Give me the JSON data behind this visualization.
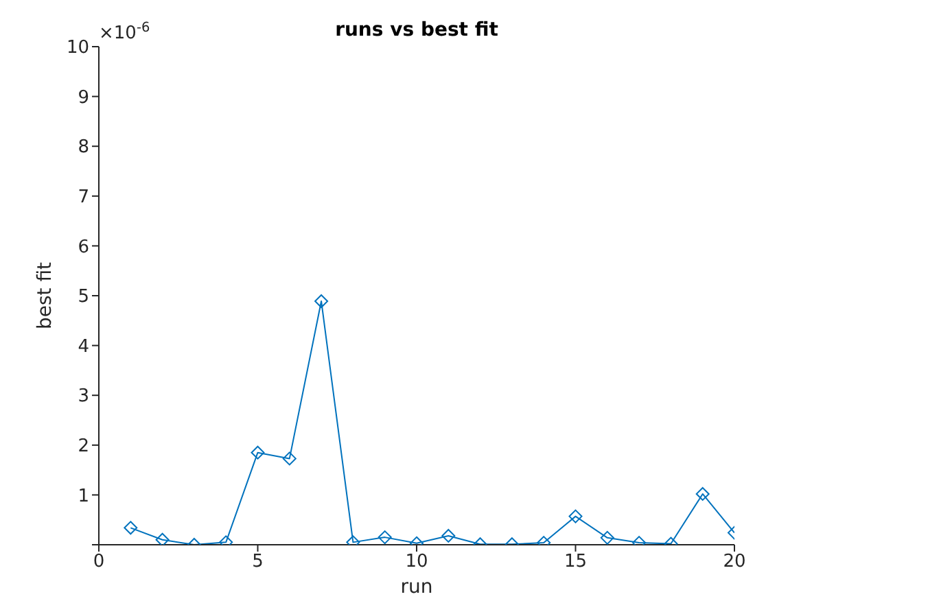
{
  "chart_data": {
    "type": "line",
    "title": "runs vs best fit",
    "xlabel": "run",
    "ylabel": "best fit",
    "annotations": [
      "×10$^{-6}$"
    ],
    "x": [
      1,
      2,
      3,
      4,
      5,
      6,
      7,
      8,
      9,
      10,
      11,
      12,
      13,
      14,
      15,
      16,
      17,
      18,
      19,
      20
    ],
    "series": [
      {
        "color": "#0072bd",
        "values": [
          0.34,
          0.1,
          0.0,
          0.05,
          1.85,
          1.73,
          4.89,
          0.05,
          0.15,
          0.03,
          0.18,
          0.01,
          0.01,
          0.04,
          0.57,
          0.14,
          0.04,
          0.02,
          1.02,
          0.24
        ]
      }
    ],
    "xlim": [
      0,
      20
    ],
    "xticks": [
      0,
      5,
      10,
      15,
      20
    ],
    "ylim": [
      0,
      10
    ],
    "yticks": [
      {
        "value": 0,
        "label": null
      },
      1,
      2,
      3,
      4,
      5,
      6,
      7,
      8,
      9,
      10
    ],
    "marker": "diamond",
    "line_style": "solid",
    "grid": false,
    "legend": false
  }
}
